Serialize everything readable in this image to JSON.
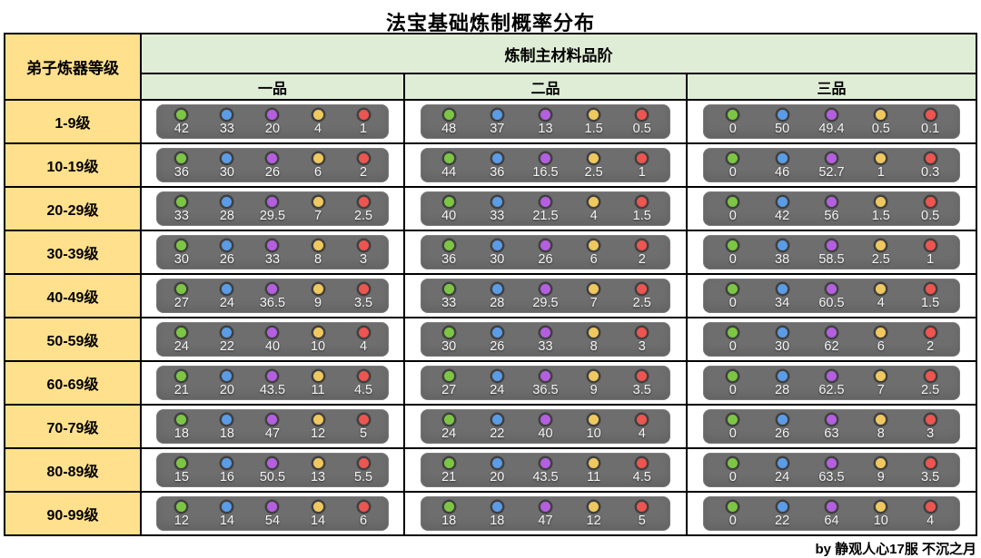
{
  "title": "法宝基础炼制概率分布",
  "footer": {
    "credit": "by 静观人心17服 不沉之月"
  },
  "colors": {
    "header_yellow": "#FFE08C",
    "header_green": "#E0EDD6",
    "panel_bg": "#6E6E6E",
    "border_black": "#000000"
  },
  "dot_colors": [
    "#7CC644",
    "#5B9CE6",
    "#B45FE0",
    "#EFC95F",
    "#EC5550"
  ],
  "dot_names": [
    "green",
    "blue",
    "purple",
    "yellow",
    "red"
  ],
  "table": {
    "corner_header": "弟子炼器等级",
    "group_header": "炼制主材料品阶",
    "grade_headers": [
      "一品",
      "二品",
      "三品"
    ],
    "rows": [
      {
        "label": "1-9级",
        "cells": [
          [
            "42",
            "33",
            "20",
            "4",
            "1"
          ],
          [
            "48",
            "37",
            "13",
            "1.5",
            "0.5"
          ],
          [
            "0",
            "50",
            "49.4",
            "0.5",
            "0.1"
          ]
        ]
      },
      {
        "label": "10-19级",
        "cells": [
          [
            "36",
            "30",
            "26",
            "6",
            "2"
          ],
          [
            "44",
            "36",
            "16.5",
            "2.5",
            "1"
          ],
          [
            "0",
            "46",
            "52.7",
            "1",
            "0.3"
          ]
        ]
      },
      {
        "label": "20-29级",
        "cells": [
          [
            "33",
            "28",
            "29.5",
            "7",
            "2.5"
          ],
          [
            "40",
            "33",
            "21.5",
            "4",
            "1.5"
          ],
          [
            "0",
            "42",
            "56",
            "1.5",
            "0.5"
          ]
        ]
      },
      {
        "label": "30-39级",
        "cells": [
          [
            "30",
            "26",
            "33",
            "8",
            "3"
          ],
          [
            "36",
            "30",
            "26",
            "6",
            "2"
          ],
          [
            "0",
            "38",
            "58.5",
            "2.5",
            "1"
          ]
        ]
      },
      {
        "label": "40-49级",
        "cells": [
          [
            "27",
            "24",
            "36.5",
            "9",
            "3.5"
          ],
          [
            "33",
            "28",
            "29.5",
            "7",
            "2.5"
          ],
          [
            "0",
            "34",
            "60.5",
            "4",
            "1.5"
          ]
        ]
      },
      {
        "label": "50-59级",
        "cells": [
          [
            "24",
            "22",
            "40",
            "10",
            "4"
          ],
          [
            "30",
            "26",
            "33",
            "8",
            "3"
          ],
          [
            "0",
            "30",
            "62",
            "6",
            "2"
          ]
        ]
      },
      {
        "label": "60-69级",
        "cells": [
          [
            "21",
            "20",
            "43.5",
            "11",
            "4.5"
          ],
          [
            "27",
            "24",
            "36.5",
            "9",
            "3.5"
          ],
          [
            "0",
            "28",
            "62.5",
            "7",
            "2.5"
          ]
        ]
      },
      {
        "label": "70-79级",
        "cells": [
          [
            "18",
            "18",
            "47",
            "12",
            "5"
          ],
          [
            "24",
            "22",
            "40",
            "10",
            "4"
          ],
          [
            "0",
            "26",
            "63",
            "8",
            "3"
          ]
        ]
      },
      {
        "label": "80-89级",
        "cells": [
          [
            "15",
            "16",
            "50.5",
            "13",
            "5.5"
          ],
          [
            "21",
            "20",
            "43.5",
            "11",
            "4.5"
          ],
          [
            "0",
            "24",
            "63.5",
            "9",
            "3.5"
          ]
        ]
      },
      {
        "label": "90-99级",
        "cells": [
          [
            "12",
            "14",
            "54",
            "14",
            "6"
          ],
          [
            "18",
            "18",
            "47",
            "12",
            "5"
          ],
          [
            "0",
            "22",
            "64",
            "10",
            "4"
          ]
        ]
      }
    ]
  }
}
